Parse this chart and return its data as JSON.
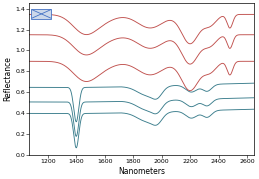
{
  "title": "",
  "xlabel": "Nanometers",
  "ylabel": "Reflectance",
  "xlim": [
    1070,
    2650
  ],
  "ylim": [
    0.0,
    1.45
  ],
  "xticks": [
    1200,
    1400,
    1600,
    1800,
    2000,
    2200,
    2400,
    2600
  ],
  "yticks": [
    0.0,
    0.2,
    0.4,
    0.6,
    0.8,
    1.0,
    1.2,
    1.4
  ],
  "blue_color": "#3a7d8c",
  "red_color": "#c0504d",
  "legend_face": "#cdd9ea",
  "legend_edge": "#4472c4"
}
